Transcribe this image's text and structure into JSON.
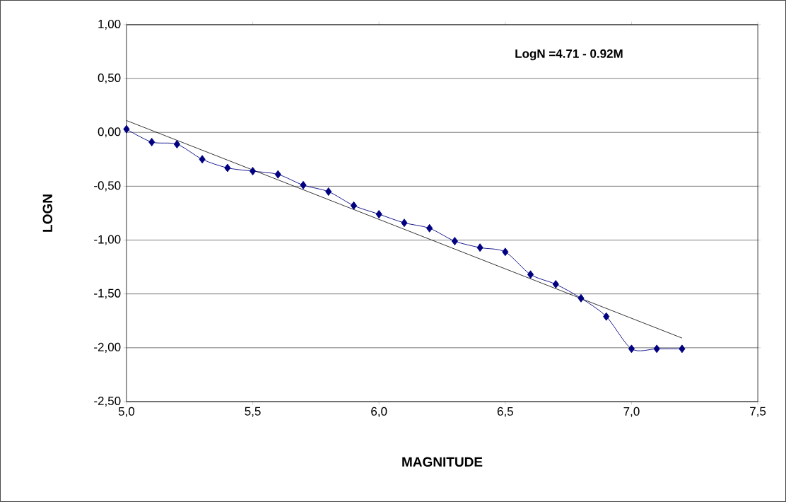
{
  "chart_data": {
    "type": "line",
    "xlabel": "MAGNITUDE",
    "ylabel": "LOGN",
    "annotations": [
      "LogN =4.71 - 0.92M"
    ],
    "x": [
      5.0,
      5.1,
      5.2,
      5.3,
      5.4,
      5.5,
      5.6,
      5.7,
      5.8,
      5.9,
      6.0,
      6.1,
      6.2,
      6.3,
      6.4,
      6.5,
      6.6,
      6.7,
      6.8,
      6.9,
      7.0,
      7.1,
      7.2
    ],
    "series": [
      {
        "color": "#000080",
        "marker": "diamond",
        "values": [
          0.03,
          -0.09,
          -0.11,
          -0.25,
          -0.33,
          -0.36,
          -0.39,
          -0.49,
          -0.55,
          -0.68,
          -0.76,
          -0.84,
          -0.89,
          -1.01,
          -1.07,
          -1.11,
          -1.32,
          -1.41,
          -1.54,
          -1.71,
          -2.01,
          -2.01,
          -2.01
        ]
      },
      {
        "color": "#000000",
        "marker": "none",
        "x": [
          5.0,
          7.2
        ],
        "values": [
          0.11,
          -1.91
        ]
      }
    ],
    "xlim": [
      5.0,
      7.5
    ],
    "ylim": [
      -2.5,
      1.0
    ],
    "xticks": [
      {
        "value": 5.0,
        "label": "5,0"
      },
      {
        "value": 5.5,
        "label": "5,5"
      },
      {
        "value": 6.0,
        "label": "6,0"
      },
      {
        "value": 6.5,
        "label": "6,5"
      },
      {
        "value": 7.0,
        "label": "7,0"
      },
      {
        "value": 7.5,
        "label": "7,5"
      }
    ],
    "yticks": [
      {
        "value": -2.5,
        "label": "-2,50"
      },
      {
        "value": -2.0,
        "label": "-2,00"
      },
      {
        "value": -1.5,
        "label": "-1,50"
      },
      {
        "value": -1.0,
        "label": "-1,00"
      },
      {
        "value": -0.5,
        "label": "-0,50"
      },
      {
        "value": 0.0,
        "label": "0,00"
      },
      {
        "value": 0.5,
        "label": "0,50"
      },
      {
        "value": 1.0,
        "label": "1,00"
      }
    ],
    "grid": "y"
  }
}
